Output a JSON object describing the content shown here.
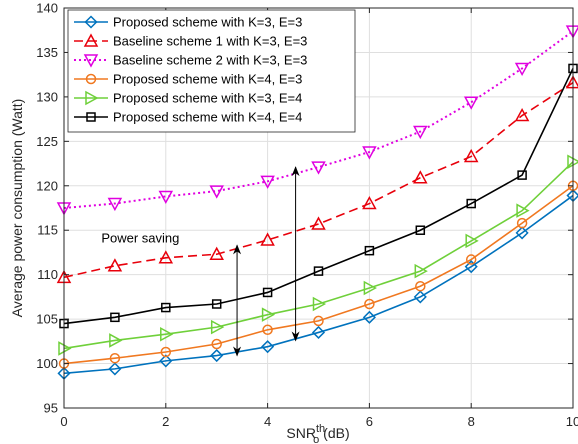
{
  "chart_data": {
    "type": "line",
    "xlabel": "SNR",
    "xlabel_sup": "th",
    "xlabel_sub": "o",
    "xlabel_unit": " (dB)",
    "ylabel": "Average power consumption (Watt)",
    "xlim": [
      0,
      10
    ],
    "ylim": [
      95,
      140
    ],
    "xticks": [
      0,
      2,
      4,
      6,
      8,
      10
    ],
    "yticks": [
      95,
      100,
      105,
      110,
      115,
      120,
      125,
      130,
      135,
      140
    ],
    "grid": true,
    "legend_position": "top-left",
    "x": [
      0,
      1,
      2,
      3,
      4,
      5,
      6,
      7,
      8,
      9,
      10
    ],
    "series": [
      {
        "name": "Proposed scheme with K=3, E=3",
        "color": "#0072BD",
        "marker": "diamond",
        "dash": "solid",
        "values": [
          98.9,
          99.4,
          100.3,
          100.9,
          101.9,
          103.5,
          105.2,
          107.5,
          110.9,
          114.7,
          118.9
        ]
      },
      {
        "name": "Baseline scheme 1 with K=3, E=3",
        "color": "#E8000B",
        "marker": "triangle-up",
        "dash": "dashed",
        "values": [
          109.7,
          111.0,
          111.9,
          112.3,
          113.9,
          115.7,
          118.0,
          120.9,
          123.3,
          127.9,
          131.6
        ]
      },
      {
        "name": "Baseline scheme 2 with K=3, E=3",
        "color": "#E000E0",
        "marker": "triangle-down",
        "dash": "dotted",
        "values": [
          117.5,
          118.0,
          118.8,
          119.4,
          120.5,
          122.1,
          123.8,
          126.1,
          129.4,
          133.2,
          137.4
        ]
      },
      {
        "name": "Proposed scheme with K=4, E=3",
        "color": "#F07820",
        "marker": "circle",
        "dash": "solid",
        "values": [
          100.0,
          100.6,
          101.3,
          102.2,
          103.8,
          104.8,
          106.7,
          108.7,
          111.7,
          115.8,
          120.0
        ]
      },
      {
        "name": "Proposed scheme with K=3, E=4",
        "color": "#6FD03A",
        "marker": "triangle-right",
        "dash": "solid",
        "values": [
          101.7,
          102.6,
          103.3,
          104.1,
          105.5,
          106.7,
          108.5,
          110.4,
          113.8,
          117.2,
          122.7
        ]
      },
      {
        "name": "Proposed scheme with K=4, E=4",
        "color": "#000000",
        "marker": "square",
        "dash": "solid",
        "values": [
          104.5,
          105.2,
          106.3,
          106.7,
          108.0,
          110.4,
          112.7,
          115.0,
          118.0,
          121.2,
          133.2
        ]
      }
    ],
    "annotations": [
      {
        "text": "Power saving",
        "x": 1.5,
        "y": 113.6
      },
      {
        "type": "double-arrow",
        "x": 3.4,
        "y1": 100.9,
        "y2": 113.3
      },
      {
        "type": "double-arrow",
        "x": 4.55,
        "y1": 102.6,
        "y2": 122.1
      }
    ]
  }
}
